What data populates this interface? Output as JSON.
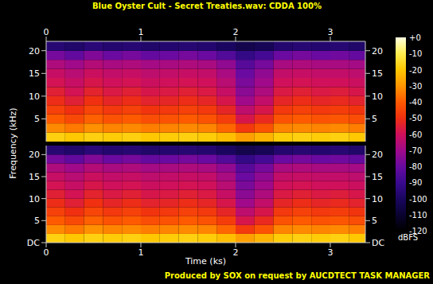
{
  "chart_data": {
    "type": "heatmap",
    "title": "Blue Oyster Cult - Secret Treaties.wav: CDDA 100%",
    "x_label": "Time (ks)",
    "y_label": "Frequency (kHz)",
    "footer": "Produced by SOX on request by AUCDTECT TASK MANAGER",
    "xlim": [
      0,
      3.37
    ],
    "xticks": [
      0,
      1,
      2,
      3
    ],
    "x_bins": [
      0,
      0.2,
      0.4,
      0.6,
      0.8,
      1.0,
      1.2,
      1.4,
      1.6,
      1.8,
      2.0,
      2.2,
      2.4,
      2.6,
      2.8,
      3.0,
      3.2,
      3.37
    ],
    "y_bins": [
      0,
      2,
      4,
      6,
      8,
      10,
      12,
      14,
      16,
      18,
      20,
      22.05
    ],
    "channels": [
      {
        "ylim": [
          0,
          22.05
        ],
        "yticks": [
          5,
          10,
          15,
          20
        ],
        "cells": [
          [
            -18,
            -20,
            -18,
            -19,
            -18,
            -20,
            -19,
            -18,
            -19,
            -22,
            -28,
            -24,
            -19,
            -18,
            -19,
            -18,
            -20
          ],
          [
            -32,
            -35,
            -31,
            -33,
            -32,
            -34,
            -33,
            -32,
            -33,
            -38,
            -48,
            -42,
            -33,
            -32,
            -33,
            -32,
            -34
          ],
          [
            -40,
            -44,
            -39,
            -42,
            -40,
            -43,
            -42,
            -40,
            -42,
            -47,
            -58,
            -52,
            -42,
            -40,
            -42,
            -41,
            -43
          ],
          [
            -46,
            -50,
            -45,
            -48,
            -46,
            -49,
            -48,
            -46,
            -48,
            -53,
            -64,
            -58,
            -48,
            -46,
            -48,
            -47,
            -49
          ],
          [
            -51,
            -55,
            -50,
            -53,
            -51,
            -54,
            -53,
            -51,
            -53,
            -58,
            -70,
            -63,
            -53,
            -51,
            -53,
            -52,
            -54
          ],
          [
            -55,
            -59,
            -54,
            -57,
            -55,
            -58,
            -57,
            -55,
            -57,
            -62,
            -74,
            -67,
            -57,
            -55,
            -57,
            -56,
            -58
          ],
          [
            -59,
            -62,
            -58,
            -60,
            -59,
            -61,
            -60,
            -59,
            -60,
            -65,
            -77,
            -70,
            -60,
            -59,
            -60,
            -60,
            -61
          ],
          [
            -62,
            -65,
            -61,
            -63,
            -62,
            -64,
            -63,
            -62,
            -63,
            -68,
            -80,
            -73,
            -63,
            -62,
            -63,
            -63,
            -64
          ],
          [
            -67,
            -70,
            -66,
            -68,
            -67,
            -69,
            -68,
            -67,
            -68,
            -73,
            -84,
            -78,
            -68,
            -67,
            -68,
            -68,
            -69
          ],
          [
            -78,
            -82,
            -76,
            -80,
            -78,
            -81,
            -80,
            -78,
            -80,
            -85,
            -92,
            -88,
            -80,
            -78,
            -80,
            -79,
            -81
          ],
          [
            -96,
            -98,
            -95,
            -97,
            -96,
            -98,
            -97,
            -96,
            -97,
            -100,
            -104,
            -102,
            -97,
            -96,
            -97,
            -96,
            -98
          ]
        ]
      },
      {
        "ylim": [
          0,
          22.05
        ],
        "yticks": [
          {
            "value": 0,
            "label": "DC"
          },
          5,
          10,
          15,
          20
        ],
        "cells": [
          [
            -18,
            -20,
            -18,
            -19,
            -18,
            -20,
            -19,
            -18,
            -19,
            -22,
            -28,
            -24,
            -19,
            -18,
            -19,
            -18,
            -20
          ],
          [
            -32,
            -35,
            -31,
            -33,
            -32,
            -34,
            -33,
            -32,
            -33,
            -38,
            -48,
            -42,
            -33,
            -32,
            -33,
            -32,
            -34
          ],
          [
            -40,
            -44,
            -39,
            -42,
            -40,
            -43,
            -42,
            -40,
            -42,
            -47,
            -58,
            -52,
            -42,
            -40,
            -42,
            -41,
            -43
          ],
          [
            -46,
            -50,
            -45,
            -48,
            -46,
            -49,
            -48,
            -46,
            -48,
            -53,
            -64,
            -58,
            -48,
            -46,
            -48,
            -47,
            -49
          ],
          [
            -51,
            -55,
            -50,
            -53,
            -51,
            -54,
            -53,
            -51,
            -53,
            -58,
            -70,
            -63,
            -53,
            -51,
            -53,
            -52,
            -54
          ],
          [
            -55,
            -59,
            -54,
            -57,
            -55,
            -58,
            -57,
            -55,
            -57,
            -62,
            -74,
            -67,
            -57,
            -55,
            -57,
            -56,
            -58
          ],
          [
            -59,
            -62,
            -58,
            -60,
            -59,
            -61,
            -60,
            -59,
            -60,
            -65,
            -77,
            -70,
            -60,
            -59,
            -60,
            -60,
            -61
          ],
          [
            -62,
            -65,
            -61,
            -63,
            -62,
            -64,
            -63,
            -62,
            -63,
            -68,
            -80,
            -73,
            -63,
            -62,
            -63,
            -63,
            -64
          ],
          [
            -67,
            -70,
            -66,
            -68,
            -67,
            -69,
            -68,
            -67,
            -68,
            -73,
            -84,
            -78,
            -68,
            -67,
            -68,
            -68,
            -69
          ],
          [
            -78,
            -82,
            -76,
            -80,
            -78,
            -81,
            -80,
            -78,
            -80,
            -85,
            -92,
            -88,
            -80,
            -78,
            -80,
            -79,
            -81
          ],
          [
            -96,
            -98,
            -95,
            -97,
            -96,
            -98,
            -97,
            -96,
            -97,
            -100,
            -104,
            -102,
            -97,
            -96,
            -97,
            -96,
            -98
          ]
        ]
      }
    ],
    "colorbar": {
      "range": [
        -120,
        0
      ],
      "label": "dBFS",
      "ticks": [
        {
          "value": 0,
          "label": "+0"
        },
        -10,
        -20,
        -30,
        -40,
        -50,
        -60,
        -70,
        -80,
        -90,
        -100,
        -110,
        -120
      ]
    }
  }
}
